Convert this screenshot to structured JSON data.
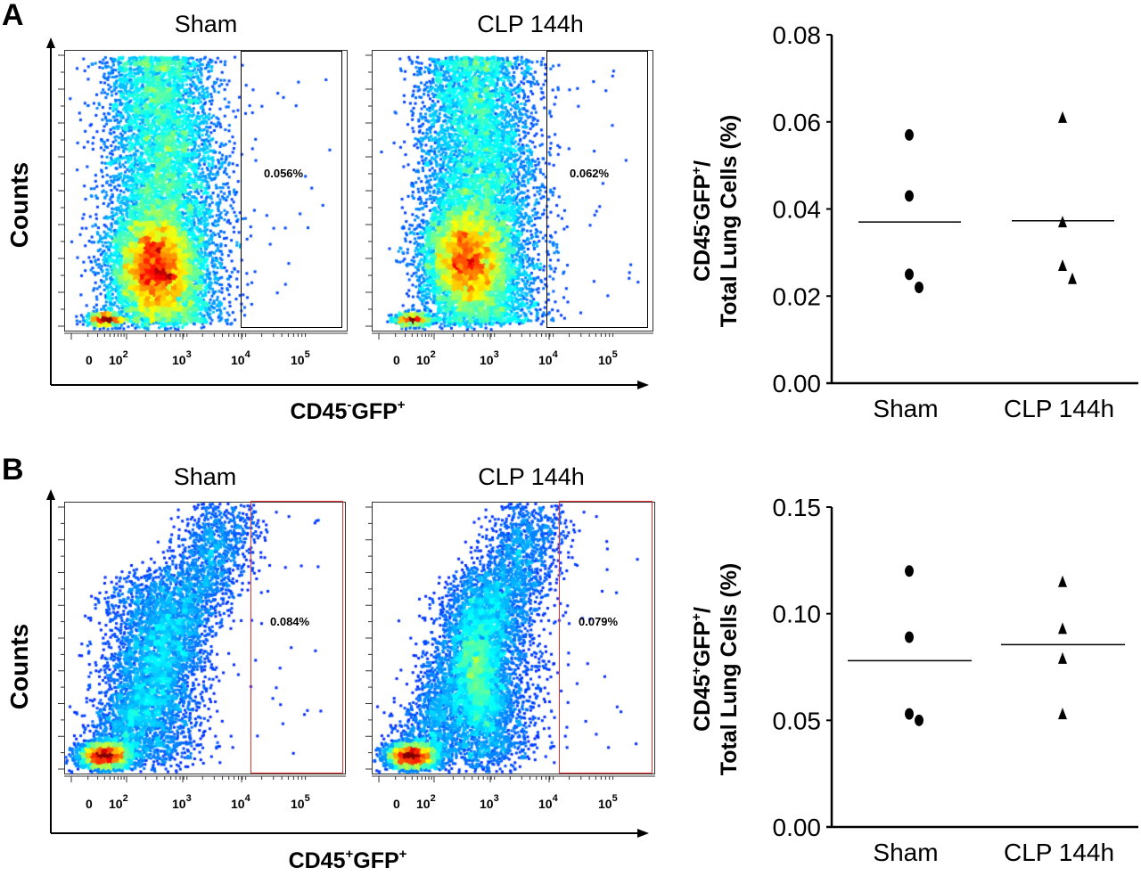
{
  "panels": [
    {
      "label": "A",
      "ylabel": "Counts",
      "xlabel": {
        "b1": "CD45",
        "s1": "-",
        "b2": "GFP",
        "s2": "+"
      },
      "plots": [
        {
          "title": "Sham",
          "gate_percent": "0.056%",
          "gate_color": "#000000"
        },
        {
          "title": "CLP 144h",
          "gate_percent": "0.062%",
          "gate_color": "#000000"
        }
      ],
      "xticks": [
        {
          "base": "0",
          "exp": ""
        },
        {
          "base": "10",
          "exp": "2"
        },
        {
          "base": "10",
          "exp": "3"
        },
        {
          "base": "10",
          "exp": "4"
        },
        {
          "base": "10",
          "exp": "5"
        }
      ]
    },
    {
      "label": "B",
      "ylabel": "Counts",
      "xlabel": {
        "b1": "CD45",
        "s1": "+",
        "b2": "GFP",
        "s2": "+"
      },
      "plots": [
        {
          "title": "Sham",
          "gate_percent": "0.084%",
          "gate_color": "#e03030"
        },
        {
          "title": "CLP 144h",
          "gate_percent": "0.079%",
          "gate_color": "#e03030"
        }
      ],
      "xticks": [
        {
          "base": "0",
          "exp": ""
        },
        {
          "base": "10",
          "exp": "2"
        },
        {
          "base": "10",
          "exp": "3"
        },
        {
          "base": "10",
          "exp": "4"
        },
        {
          "base": "10",
          "exp": "5"
        }
      ]
    }
  ],
  "chart_data": [
    {
      "type": "scatter",
      "ylabel": {
        "b1": "CD45",
        "s1": "-",
        "b2": "GFP",
        "s2": "+",
        "tail": "/",
        "line2": "Total Lung Cells (%)"
      },
      "categories": [
        "Sham",
        "CLP 144h"
      ],
      "ylim": [
        0,
        0.08
      ],
      "yticks": [
        "0.00",
        "0.02",
        "0.04",
        "0.06",
        "0.08"
      ],
      "series": [
        {
          "category": "Sham",
          "marker": "circle",
          "values": [
            0.057,
            0.043,
            0.025,
            0.022
          ],
          "mean": 0.037
        },
        {
          "category": "CLP 144h",
          "marker": "triangle",
          "values": [
            0.061,
            0.037,
            0.027,
            0.024
          ],
          "mean": 0.0373
        }
      ]
    },
    {
      "type": "scatter",
      "ylabel": {
        "b1": "CD45",
        "s1": "+",
        "b2": "GFP",
        "s2": "+",
        "tail": "/",
        "line2": "Total Lung Cells (%)"
      },
      "categories": [
        "Sham",
        "CLP 144h"
      ],
      "ylim": [
        0,
        0.15
      ],
      "yticks": [
        "0.00",
        "0.05",
        "0.10",
        "0.15"
      ],
      "series": [
        {
          "category": "Sham",
          "marker": "circle",
          "values": [
            0.12,
            0.089,
            0.053,
            0.05
          ],
          "mean": 0.078
        },
        {
          "category": "CLP 144h",
          "marker": "triangle",
          "values": [
            0.115,
            0.093,
            0.079,
            0.053
          ],
          "mean": 0.0855
        }
      ]
    }
  ]
}
